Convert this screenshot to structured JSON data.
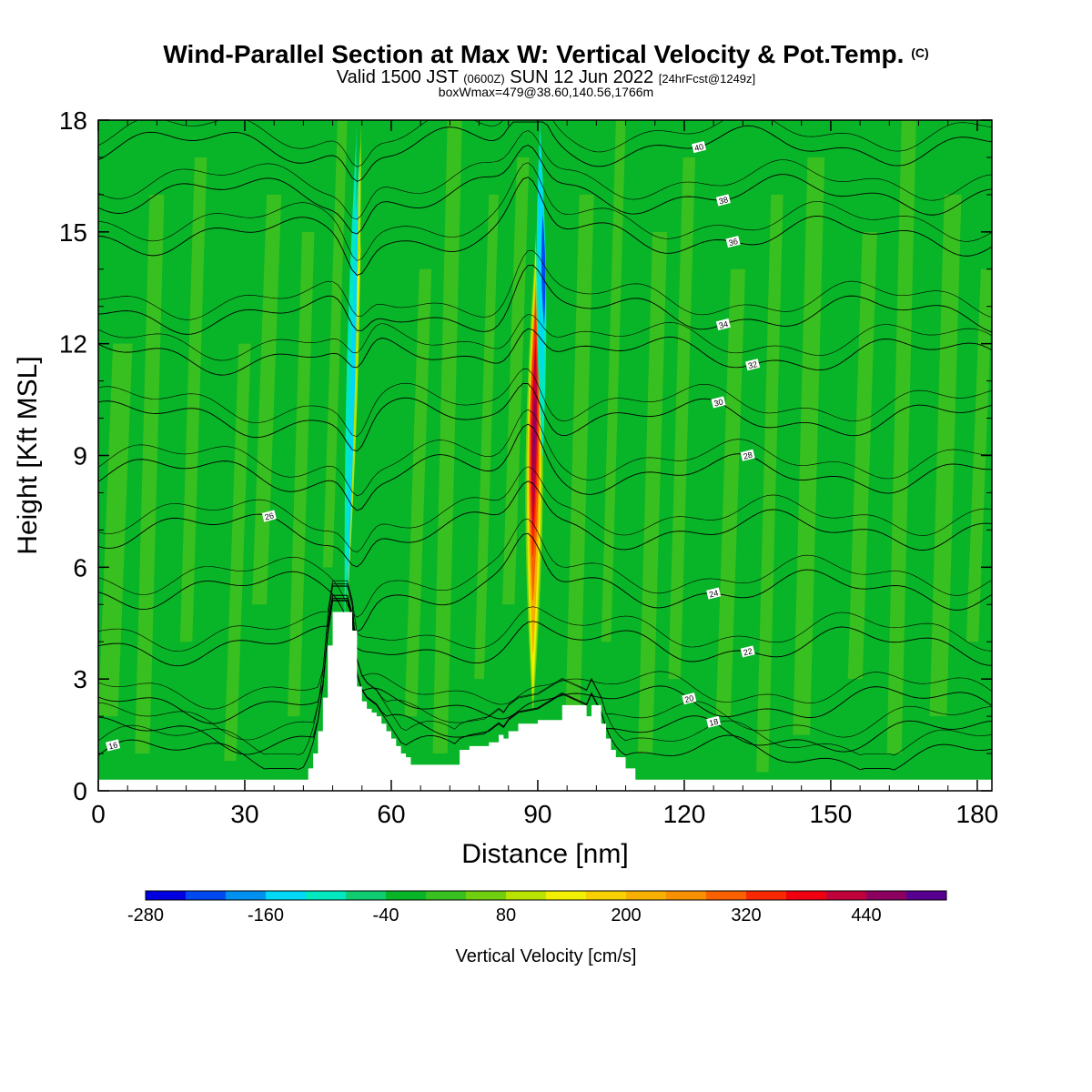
{
  "header": {
    "title": "Wind-Parallel Section at Max W: Vertical Velocity & Pot.Temp.",
    "copyright": "(C)",
    "valid_a": "Valid 1500 JST",
    "valid_b": "(0600Z)",
    "valid_c": "SUN 12 Jun 2022",
    "forecast": "[24hrFcst@1249z]",
    "box_info": "boxWmax=479@38.60,140.56,1766m"
  },
  "chart_data": {
    "type": "heatmap",
    "xlabel": "Distance [nm]",
    "ylabel": "Height [Kft MSL]",
    "xlim": [
      0,
      183
    ],
    "ylim": [
      0,
      18
    ],
    "x_ticks": [
      "0",
      "30",
      "60",
      "90",
      "120",
      "150",
      "180"
    ],
    "y_ticks": [
      "0",
      "3",
      "6",
      "9",
      "12",
      "15",
      "18"
    ],
    "colorbar": {
      "label": "Vertical Velocity [cm/s]",
      "tick_labels": [
        "-280",
        "-160",
        "-40",
        "80",
        "200",
        "320",
        "440"
      ],
      "levels": [
        -280,
        -240,
        -200,
        -160,
        -120,
        -80,
        -40,
        0,
        40,
        80,
        120,
        160,
        200,
        240,
        280,
        320,
        360,
        400,
        440,
        480
      ],
      "colors": [
        "#0000e0",
        "#0048f0",
        "#0090f0",
        "#00d8f8",
        "#00e8c0",
        "#10cc70",
        "#08b428",
        "#38c020",
        "#70d010",
        "#b8e400",
        "#f0f000",
        "#f8d000",
        "#f8b000",
        "#f89000",
        "#f86000",
        "#f82800",
        "#f00010",
        "#c0003a",
        "#8c0060",
        "#580090"
      ]
    },
    "theta_contours": [
      {
        "label": "16",
        "level_kft": 0.95
      },
      {
        "label": "18",
        "level_kft": 1.5
      },
      {
        "label": "20",
        "level_kft": 2.35
      },
      {
        "label": "22",
        "level_kft": 3.9
      },
      {
        "label": "24",
        "level_kft": 5.4
      },
      {
        "label": "26",
        "level_kft": 7.0
      },
      {
        "label": "28",
        "level_kft": 8.5
      },
      {
        "label": "30",
        "level_kft": 10.0
      },
      {
        "label": "32",
        "level_kft": 11.7
      },
      {
        "label": "34",
        "level_kft": 12.8
      },
      {
        "label": "36",
        "level_kft": 14.9
      },
      {
        "label": "38",
        "level_kft": 16.0
      },
      {
        "label": "40",
        "level_kft": 17.3
      }
    ],
    "updrafts": [
      {
        "x_nm": 89,
        "y_bottom_kft": 2.5,
        "y_top_kft": 15,
        "max_w": 479
      },
      {
        "x_nm": 51,
        "y_bottom_kft": 4.5,
        "y_top_kft": 18,
        "max_w": 120
      }
    ],
    "downdrafts": [
      {
        "x_nm": 91,
        "y_bottom_kft": 9,
        "y_top_kft": 18,
        "min_w": -260
      },
      {
        "x_nm": 52,
        "y_bottom_kft": 4.8,
        "y_top_kft": 18,
        "min_w": -160
      }
    ],
    "terrain": [
      [
        0,
        0.3
      ],
      [
        42,
        0.3
      ],
      [
        43,
        0.6
      ],
      [
        44,
        1.0
      ],
      [
        45,
        1.6
      ],
      [
        46,
        2.5
      ],
      [
        47,
        3.9
      ],
      [
        48,
        4.8
      ],
      [
        51,
        4.8
      ],
      [
        52,
        4.3
      ],
      [
        53,
        2.8
      ],
      [
        54,
        2.4
      ],
      [
        55,
        2.2
      ],
      [
        56,
        2.1
      ],
      [
        57,
        2.0
      ],
      [
        58,
        1.8
      ],
      [
        59,
        1.6
      ],
      [
        60,
        1.4
      ],
      [
        61,
        1.2
      ],
      [
        62,
        1.0
      ],
      [
        63,
        0.9
      ],
      [
        64,
        0.7
      ],
      [
        73,
        0.7
      ],
      [
        74,
        1.1
      ],
      [
        76,
        1.2
      ],
      [
        80,
        1.3
      ],
      [
        82,
        1.5
      ],
      [
        83,
        1.4
      ],
      [
        84,
        1.6
      ],
      [
        86,
        1.8
      ],
      [
        90,
        1.9
      ],
      [
        95,
        2.3
      ],
      [
        100,
        2.0
      ],
      [
        101,
        2.3
      ],
      [
        103,
        1.8
      ],
      [
        104,
        1.4
      ],
      [
        105,
        1.1
      ],
      [
        106,
        0.9
      ],
      [
        108,
        0.6
      ],
      [
        110,
        0.3
      ],
      [
        183,
        0.3
      ]
    ]
  }
}
